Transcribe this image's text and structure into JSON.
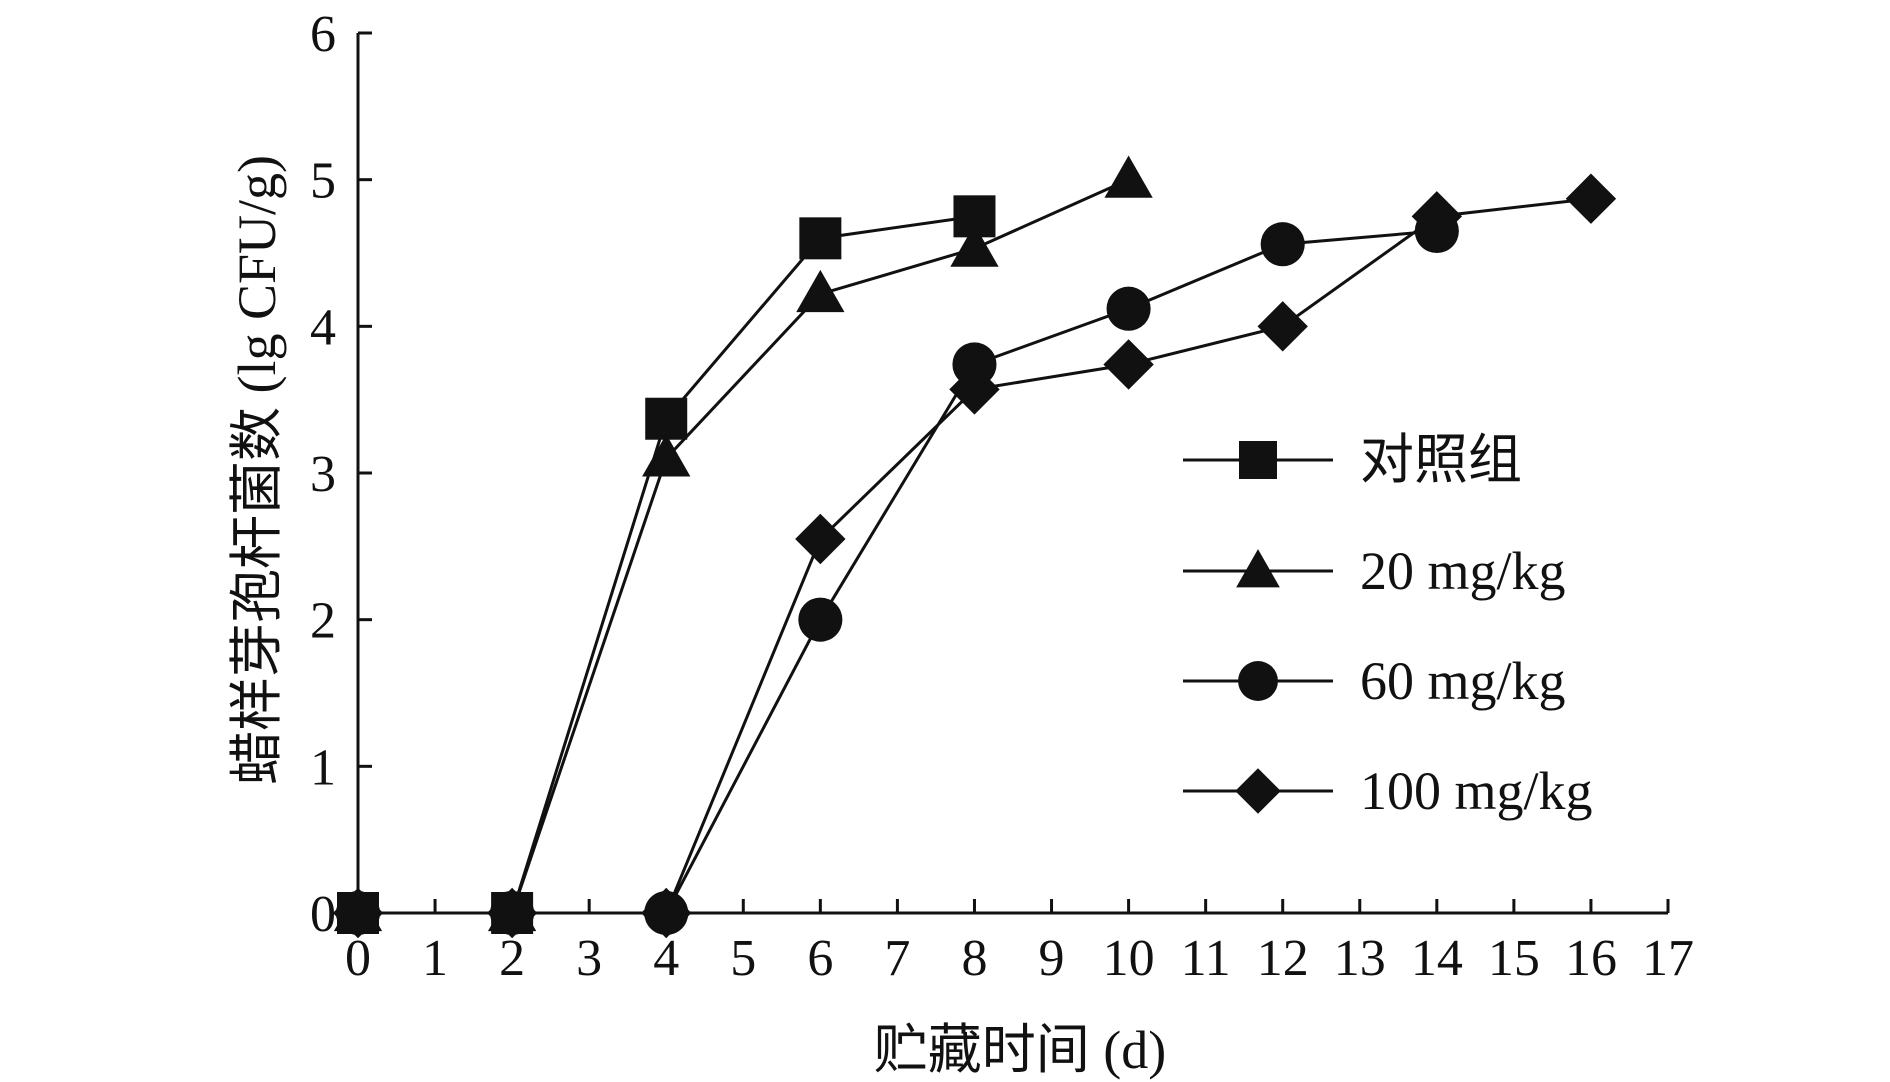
{
  "chart_data": {
    "type": "line",
    "xlabel": "贮藏时间 (d)",
    "ylabel": "蜡样芽孢杆菌数 (lg CFU/g)",
    "xlim": [
      0,
      17
    ],
    "ylim": [
      0,
      6
    ],
    "x_ticks": [
      "0",
      "1",
      "2",
      "3",
      "4",
      "5",
      "6",
      "7",
      "8",
      "9",
      "10",
      "11",
      "12",
      "13",
      "14",
      "15",
      "16",
      "17"
    ],
    "y_ticks": [
      "0",
      "1",
      "2",
      "3",
      "4",
      "5",
      "6"
    ],
    "grid": false,
    "legend_position": "right",
    "series": [
      {
        "name": "对照组",
        "marker": "square",
        "points": [
          [
            0,
            0
          ],
          [
            2,
            0
          ],
          [
            4,
            3.37
          ],
          [
            6,
            4.6
          ],
          [
            8,
            4.75
          ]
        ]
      },
      {
        "name": "20 mg/kg",
        "marker": "triangle",
        "points": [
          [
            0,
            0
          ],
          [
            2,
            0
          ],
          [
            4,
            3.1
          ],
          [
            6,
            4.22
          ],
          [
            8,
            4.53
          ],
          [
            10,
            5.0
          ]
        ]
      },
      {
        "name": "60 mg/kg",
        "marker": "circle",
        "points": [
          [
            0,
            0
          ],
          [
            2,
            0
          ],
          [
            4,
            0
          ],
          [
            6,
            2.0
          ],
          [
            8,
            3.74
          ],
          [
            10,
            4.12
          ],
          [
            12,
            4.56
          ],
          [
            14,
            4.65
          ]
        ]
      },
      {
        "name": "100 mg/kg",
        "marker": "diamond",
        "points": [
          [
            0,
            0
          ],
          [
            2,
            0
          ],
          [
            4,
            0
          ],
          [
            6,
            2.55
          ],
          [
            8,
            3.57
          ],
          [
            10,
            3.74
          ],
          [
            12,
            4.0
          ],
          [
            14,
            4.75
          ],
          [
            16,
            4.87
          ]
        ]
      }
    ]
  }
}
